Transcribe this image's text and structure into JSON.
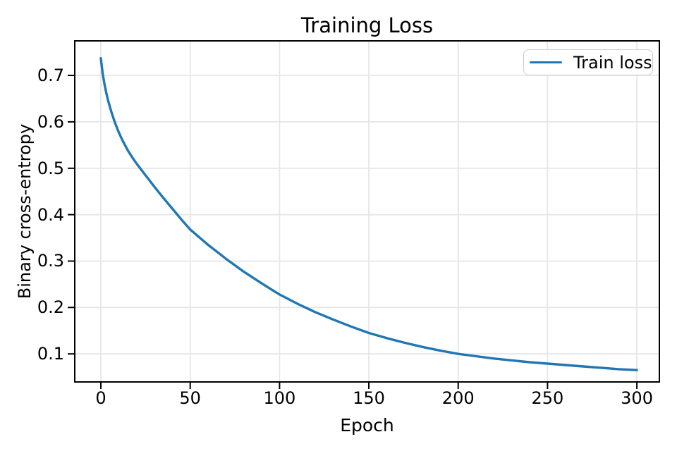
{
  "chart_data": {
    "type": "line",
    "title": "Training Loss",
    "xlabel": "Epoch",
    "ylabel": "Binary cross-entropy",
    "grid": true,
    "legend_position": "upper right",
    "xlim": [
      -15,
      313
    ],
    "ylim": [
      0.038,
      0.776
    ],
    "xticks": [
      0,
      50,
      100,
      150,
      200,
      250,
      300
    ],
    "yticks": [
      0.1,
      0.2,
      0.3,
      0.4,
      0.5,
      0.6,
      0.7
    ],
    "series": [
      {
        "name": "Train loss",
        "color": "#1f77b4",
        "x": [
          0,
          1,
          2,
          3,
          4,
          5,
          6,
          8,
          10,
          12,
          15,
          18,
          20,
          25,
          30,
          35,
          40,
          45,
          50,
          60,
          70,
          80,
          90,
          100,
          110,
          120,
          130,
          140,
          150,
          160,
          170,
          180,
          190,
          200,
          210,
          220,
          230,
          240,
          250,
          260,
          270,
          280,
          290,
          300
        ],
        "y": [
          0.737,
          0.705,
          0.682,
          0.663,
          0.647,
          0.633,
          0.62,
          0.597,
          0.578,
          0.561,
          0.539,
          0.521,
          0.51,
          0.485,
          0.46,
          0.436,
          0.413,
          0.39,
          0.368,
          0.335,
          0.305,
          0.277,
          0.252,
          0.228,
          0.208,
          0.19,
          0.174,
          0.159,
          0.145,
          0.134,
          0.124,
          0.115,
          0.107,
          0.1,
          0.095,
          0.09,
          0.086,
          0.082,
          0.079,
          0.076,
          0.073,
          0.07,
          0.067,
          0.065
        ]
      }
    ]
  },
  "colors": {
    "line": "#1f77b4",
    "grid": "#e6e6e6",
    "spine": "#000000",
    "legend_border": "#cccccc",
    "background": "#ffffff",
    "text": "#000000"
  }
}
